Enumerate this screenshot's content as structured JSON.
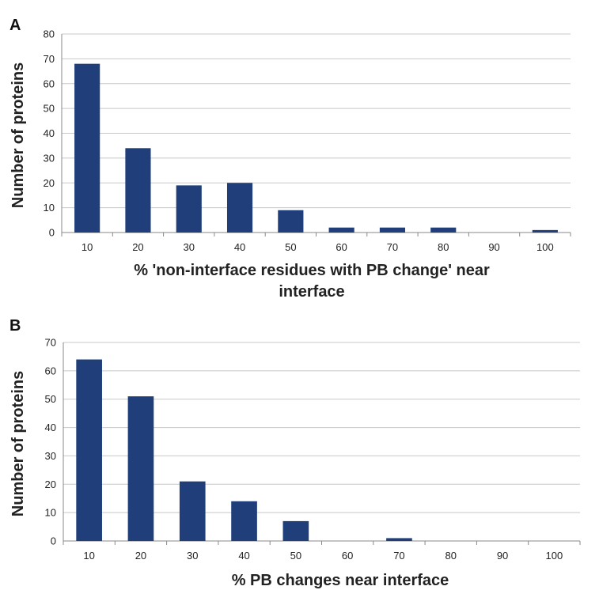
{
  "chart_data": [
    {
      "panel": "A",
      "type": "bar",
      "categories": [
        "10",
        "20",
        "30",
        "40",
        "50",
        "60",
        "70",
        "80",
        "90",
        "100"
      ],
      "values": [
        68,
        34,
        19,
        20,
        9,
        2,
        2,
        2,
        0,
        1
      ],
      "title": "",
      "xlabel_lines": [
        "% 'non-interface residues with PB change' near",
        "interface"
      ],
      "ylabel": "Number of proteins",
      "ylim": [
        0,
        80
      ],
      "yticks": [
        "0",
        "10",
        "20",
        "30",
        "40",
        "50",
        "60",
        "70",
        "80"
      ],
      "grid": true,
      "legend": "none",
      "bar_color": "#203f7a"
    },
    {
      "panel": "B",
      "type": "bar",
      "categories": [
        "10",
        "20",
        "30",
        "40",
        "50",
        "60",
        "70",
        "80",
        "90",
        "100"
      ],
      "values": [
        64,
        51,
        21,
        14,
        7,
        0,
        1,
        0,
        0,
        0
      ],
      "title": "",
      "xlabel_lines": [
        "% PB changes near interface"
      ],
      "ylabel": "Number of proteins",
      "ylim": [
        0,
        70
      ],
      "yticks": [
        "0",
        "10",
        "20",
        "30",
        "40",
        "50",
        "60",
        "70"
      ],
      "grid": true,
      "legend": "none",
      "bar_color": "#203f7a"
    }
  ]
}
